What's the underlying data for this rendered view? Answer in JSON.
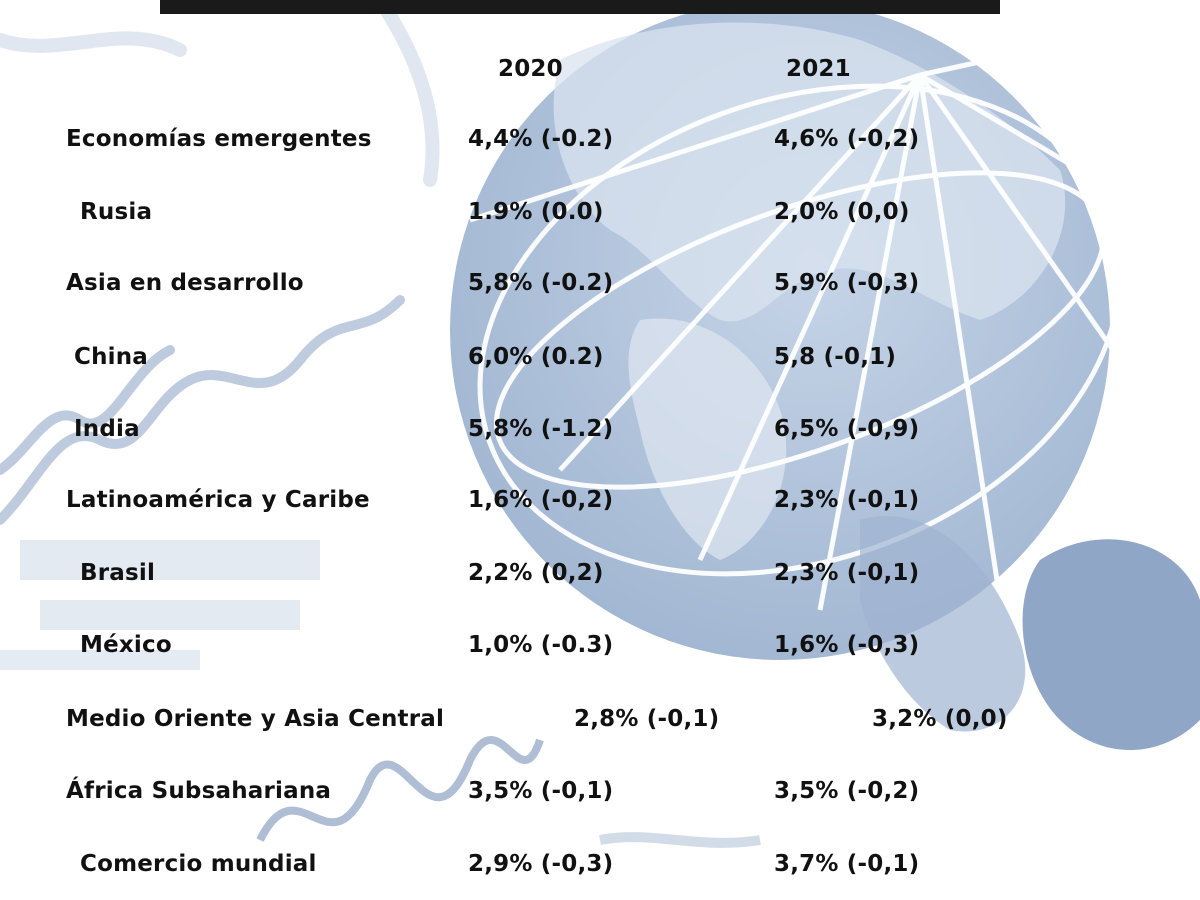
{
  "table": {
    "headers": [
      "2020",
      "2021"
    ],
    "rows": [
      {
        "label": "Economías emergentes",
        "y2020": "4,4% (-0.2)",
        "y2021": "4,6% (-0,2)"
      },
      {
        "label": "Rusia",
        "y2020": "1.9% (0.0)",
        "y2021": "2,0% (0,0)"
      },
      {
        "label": "Asia en desarrollo",
        "y2020": "5,8% (-0.2)",
        "y2021": "5,9% (-0,3)"
      },
      {
        "label": "China",
        "y2020": "6,0% (0.2)",
        "y2021": "5,8 (-0,1)"
      },
      {
        "label": "India",
        "y2020": "5,8% (-1.2)",
        "y2021": "6,5% (-0,9)"
      },
      {
        "label": "Latinoamérica y Caribe",
        "y2020": "1,6% (-0,2)",
        "y2021": "2,3% (-0,1)"
      },
      {
        "label": "Brasil",
        "y2020": "2,2% (0,2)",
        "y2021": "2,3% (-0,1)"
      },
      {
        "label": "México",
        "y2020": "1,0% (-0.3)",
        "y2021": "1,6% (-0,3)"
      },
      {
        "label": "Medio Oriente y Asia Central",
        "y2020": "2,8% (-0,1)",
        "y2021": "3,2% (0,0)"
      },
      {
        "label": "África Subsahariana",
        "y2020": "3,5% (-0,1)",
        "y2021": "3,5% (-0,2)"
      },
      {
        "label": "Comercio mundial",
        "y2020": "2,9% (-0,3)",
        "y2021": "3,7% (-0,1)"
      }
    ]
  }
}
